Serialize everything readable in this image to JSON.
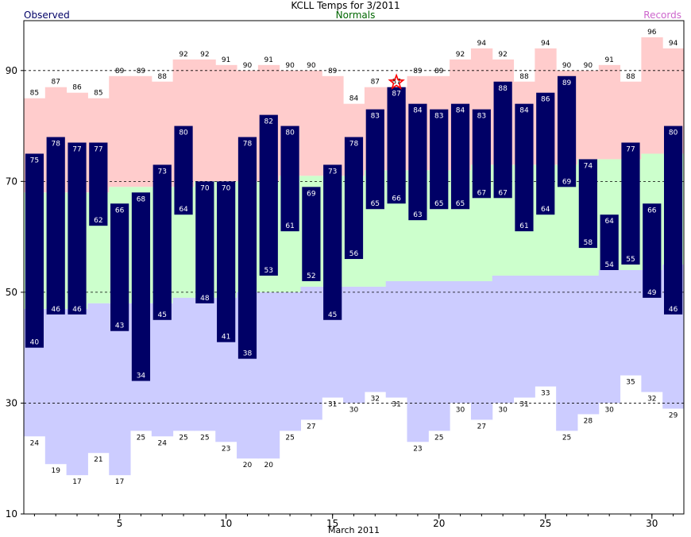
{
  "title": "KCLL Temps for 3/2011",
  "legend": {
    "observed": "Observed",
    "normals": "Normals",
    "records": "Records"
  },
  "colors": {
    "observed_bar": "#000066",
    "normal_band": "#ccffcc",
    "record_high_band": "#ffcccc",
    "record_low_band": "#ccccff",
    "observed_text": "#000066",
    "normals_text": "#006600",
    "records_text": "#cc66cc",
    "star": "#ff0000"
  },
  "chart_data": {
    "type": "bar",
    "title": "KCLL Temps for 3/2011",
    "xlabel": "March 2011",
    "ylabel": "",
    "ylim": [
      10,
      99
    ],
    "yticks": [
      10,
      30,
      50,
      70,
      90
    ],
    "xticks": [
      5,
      10,
      15,
      20,
      25,
      30
    ],
    "grid": "dashed horizontal at 30, 50, 70, 90",
    "days": [
      1,
      2,
      3,
      4,
      5,
      6,
      7,
      8,
      9,
      10,
      11,
      12,
      13,
      14,
      15,
      16,
      17,
      18,
      19,
      20,
      21,
      22,
      23,
      24,
      25,
      26,
      27,
      28,
      29,
      30,
      31
    ],
    "observed_high": [
      75,
      78,
      77,
      77,
      66,
      68,
      73,
      80,
      70,
      70,
      78,
      82,
      80,
      69,
      73,
      78,
      83,
      87,
      84,
      83,
      84,
      83,
      88,
      84,
      86,
      89,
      74,
      64,
      77,
      66,
      80
    ],
    "observed_low": [
      40,
      46,
      46,
      62,
      43,
      34,
      45,
      64,
      48,
      41,
      38,
      53,
      61,
      52,
      45,
      56,
      65,
      66,
      63,
      65,
      65,
      67,
      67,
      61,
      64,
      69,
      58,
      54,
      55,
      49,
      46
    ],
    "normal_high": [
      68,
      68,
      68,
      68,
      69,
      69,
      69,
      69,
      70,
      70,
      70,
      70,
      71,
      71,
      71,
      71,
      72,
      72,
      72,
      72,
      72,
      73,
      73,
      73,
      73,
      73,
      74,
      74,
      74,
      75,
      75
    ],
    "normal_low": [
      47,
      47,
      47,
      48,
      48,
      48,
      48,
      49,
      49,
      49,
      50,
      50,
      50,
      51,
      51,
      51,
      51,
      52,
      52,
      52,
      52,
      52,
      53,
      53,
      53,
      53,
      53,
      54,
      54,
      54,
      55
    ],
    "record_high": [
      85,
      87,
      86,
      85,
      89,
      89,
      88,
      92,
      92,
      91,
      90,
      91,
      90,
      90,
      89,
      84,
      87,
      87,
      89,
      89,
      92,
      94,
      92,
      88,
      94,
      90,
      90,
      91,
      88,
      96,
      94
    ],
    "record_low": [
      24,
      19,
      17,
      21,
      17,
      25,
      24,
      25,
      25,
      23,
      20,
      20,
      25,
      27,
      31,
      30,
      32,
      31,
      23,
      25,
      30,
      27,
      30,
      31,
      33,
      25,
      28,
      30,
      35,
      32,
      29
    ],
    "record_set_markers": [
      18
    ]
  }
}
